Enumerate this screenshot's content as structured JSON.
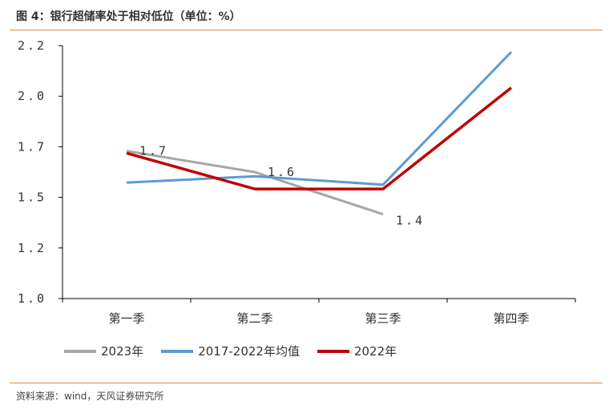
{
  "figure": {
    "title": "图 4：银行超储率处于相对低位（单位：%）",
    "source": "资料来源：wind，天风证券研究所"
  },
  "colors": {
    "s2023": "#a6a6a6",
    "avg": "#5b9bd5",
    "s2022": "#c00000",
    "rule": "#d88a4a"
  },
  "chart_data": {
    "type": "line",
    "categories": [
      "第一季",
      "第二季",
      "第三季",
      "第四季"
    ],
    "yticks": [
      "1.0",
      "1.2",
      "1.5",
      "1.7",
      "2.0",
      "2.2"
    ],
    "ylim": [
      1.0,
      2.2
    ],
    "series": [
      {
        "name": "2023年",
        "values": [
          1.7,
          1.6,
          1.4,
          null
        ],
        "color": "#a6a6a6",
        "labels": [
          "1.7",
          "1.6",
          "1.4",
          ""
        ]
      },
      {
        "name": "2017-2022年均值",
        "values": [
          1.55,
          1.58,
          1.54,
          2.17
        ],
        "color": "#5b9bd5",
        "labels": [
          "",
          "",
          "",
          ""
        ]
      },
      {
        "name": "2022年",
        "values": [
          1.69,
          1.52,
          1.52,
          2.0
        ],
        "color": "#c00000",
        "labels": [
          "",
          "",
          "",
          ""
        ]
      }
    ]
  }
}
